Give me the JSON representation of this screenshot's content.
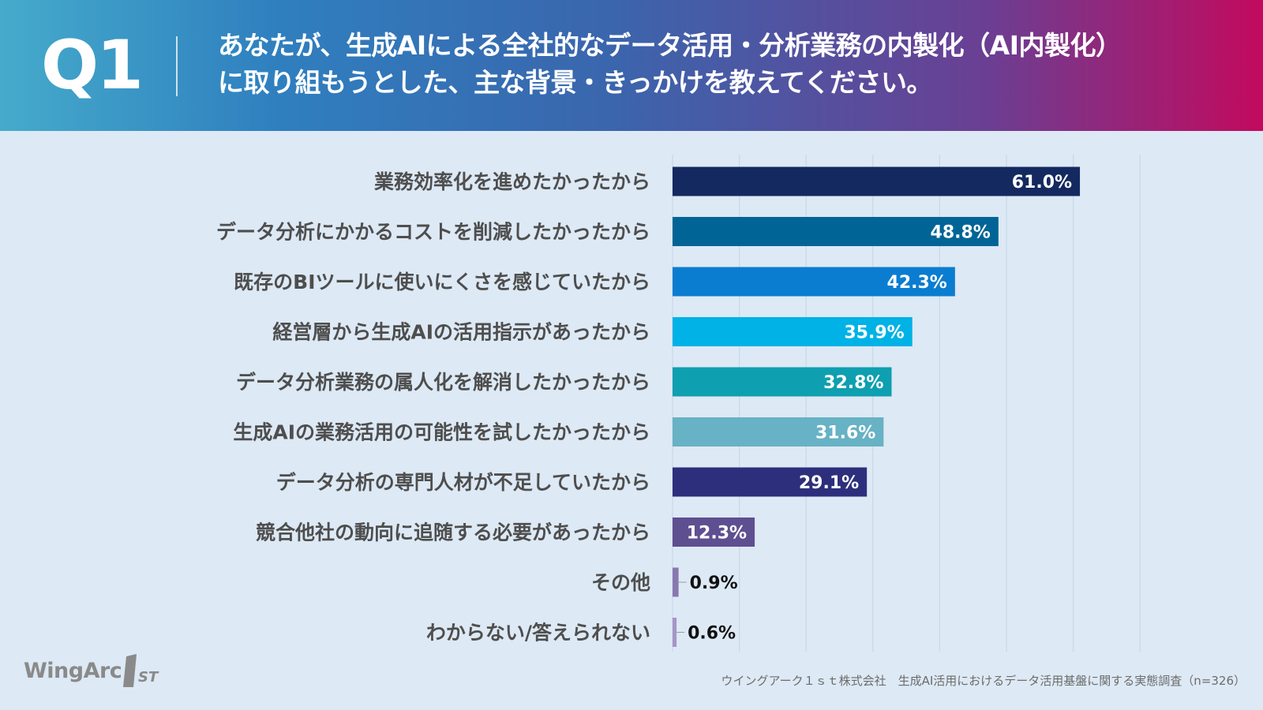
{
  "header": {
    "q_label": "Q1",
    "question_line1": "あなたが、生成AIによる全社的なデータ活用・分析業務の内製化（AI内製化）",
    "question_line2": "に取り組もうとした、主な背景・きっかけを教えてください。"
  },
  "chart_data": {
    "type": "bar",
    "orientation": "horizontal",
    "categories": [
      "業務効率化を進めたかったから",
      "データ分析にかかるコストを削減したかったから",
      "既存のBIツールに使いにくさを感じていたから",
      "経営層から生成AIの活用指示があったから",
      "データ分析業務の属人化を解消したかったから",
      "生成AIの業務活用の可能性を試したかったから",
      "データ分析の専門人材が不足していたから",
      "競合他社の動向に追随する必要があったから",
      "その他",
      "わからない/答えられない"
    ],
    "values": [
      61.0,
      48.8,
      42.3,
      35.9,
      32.8,
      31.6,
      29.1,
      12.3,
      0.9,
      0.6
    ],
    "value_labels": [
      "61.0%",
      "48.8%",
      "42.3%",
      "35.9%",
      "32.8%",
      "31.6%",
      "29.1%",
      "12.3%",
      "0.9%",
      "0.6%"
    ],
    "bar_colors": [
      "#14295f",
      "#006596",
      "#0a7dd0",
      "#00b2e6",
      "#0e9fb0",
      "#67b2c4",
      "#2d2f7c",
      "#5e4f91",
      "#8978b0",
      "#a596c6"
    ],
    "xlim": [
      0,
      70
    ],
    "grid": true,
    "unit": "%"
  },
  "footer": {
    "logo_text": "WingArc",
    "logo_mark": "1ST",
    "source": "ウイングアーク１ｓｔ株式会社　生成AI活用におけるデータ活用基盤に関する実態調査（n=326）"
  }
}
